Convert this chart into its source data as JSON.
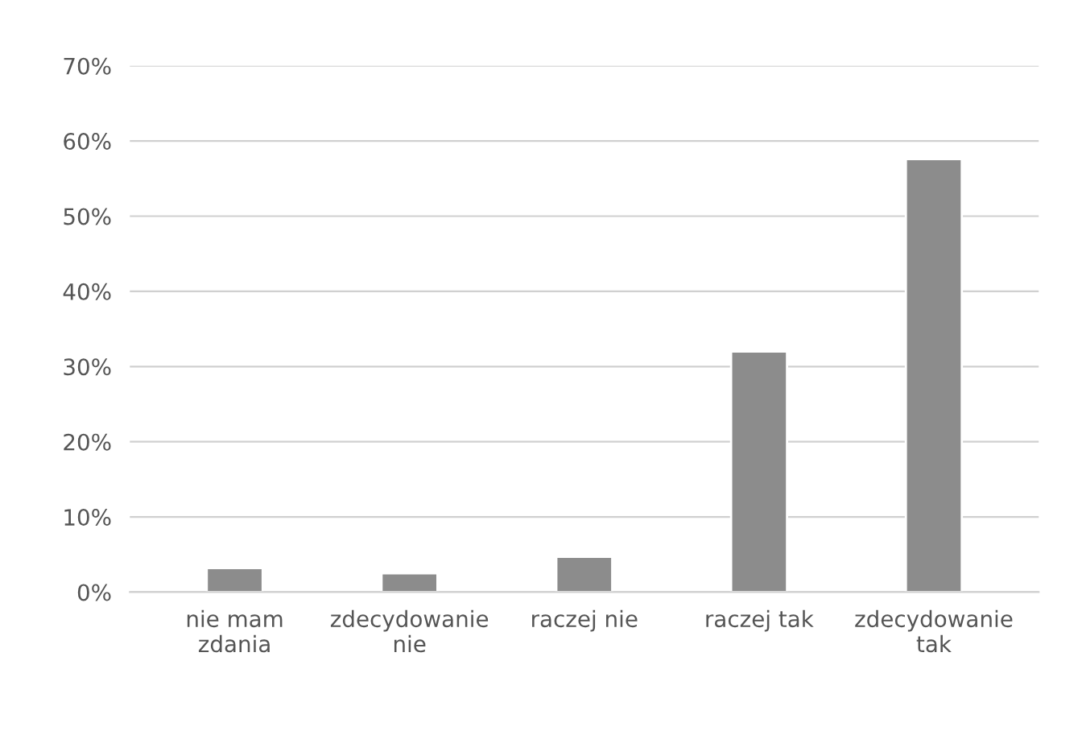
{
  "chart_data": {
    "type": "bar",
    "categories": [
      "nie mam\nzdania",
      "zdecydowanie\nnie",
      "raczej nie",
      "raczej tak",
      "zdecydowanie\ntak"
    ],
    "values": [
      3.2,
      2.5,
      4.7,
      32.0,
      57.6
    ],
    "color": "#8c8c8c",
    "ylim": [
      0,
      70
    ],
    "yticks": [
      {
        "value": 0,
        "label": "0%"
      },
      {
        "value": 10,
        "label": "10%"
      },
      {
        "value": 20,
        "label": "20%"
      },
      {
        "value": 30,
        "label": "30%"
      },
      {
        "value": 40,
        "label": "40%"
      },
      {
        "value": 50,
        "label": "50%"
      },
      {
        "value": 60,
        "label": "60%"
      },
      {
        "value": 70,
        "label": "70%"
      }
    ],
    "grid": "y"
  }
}
